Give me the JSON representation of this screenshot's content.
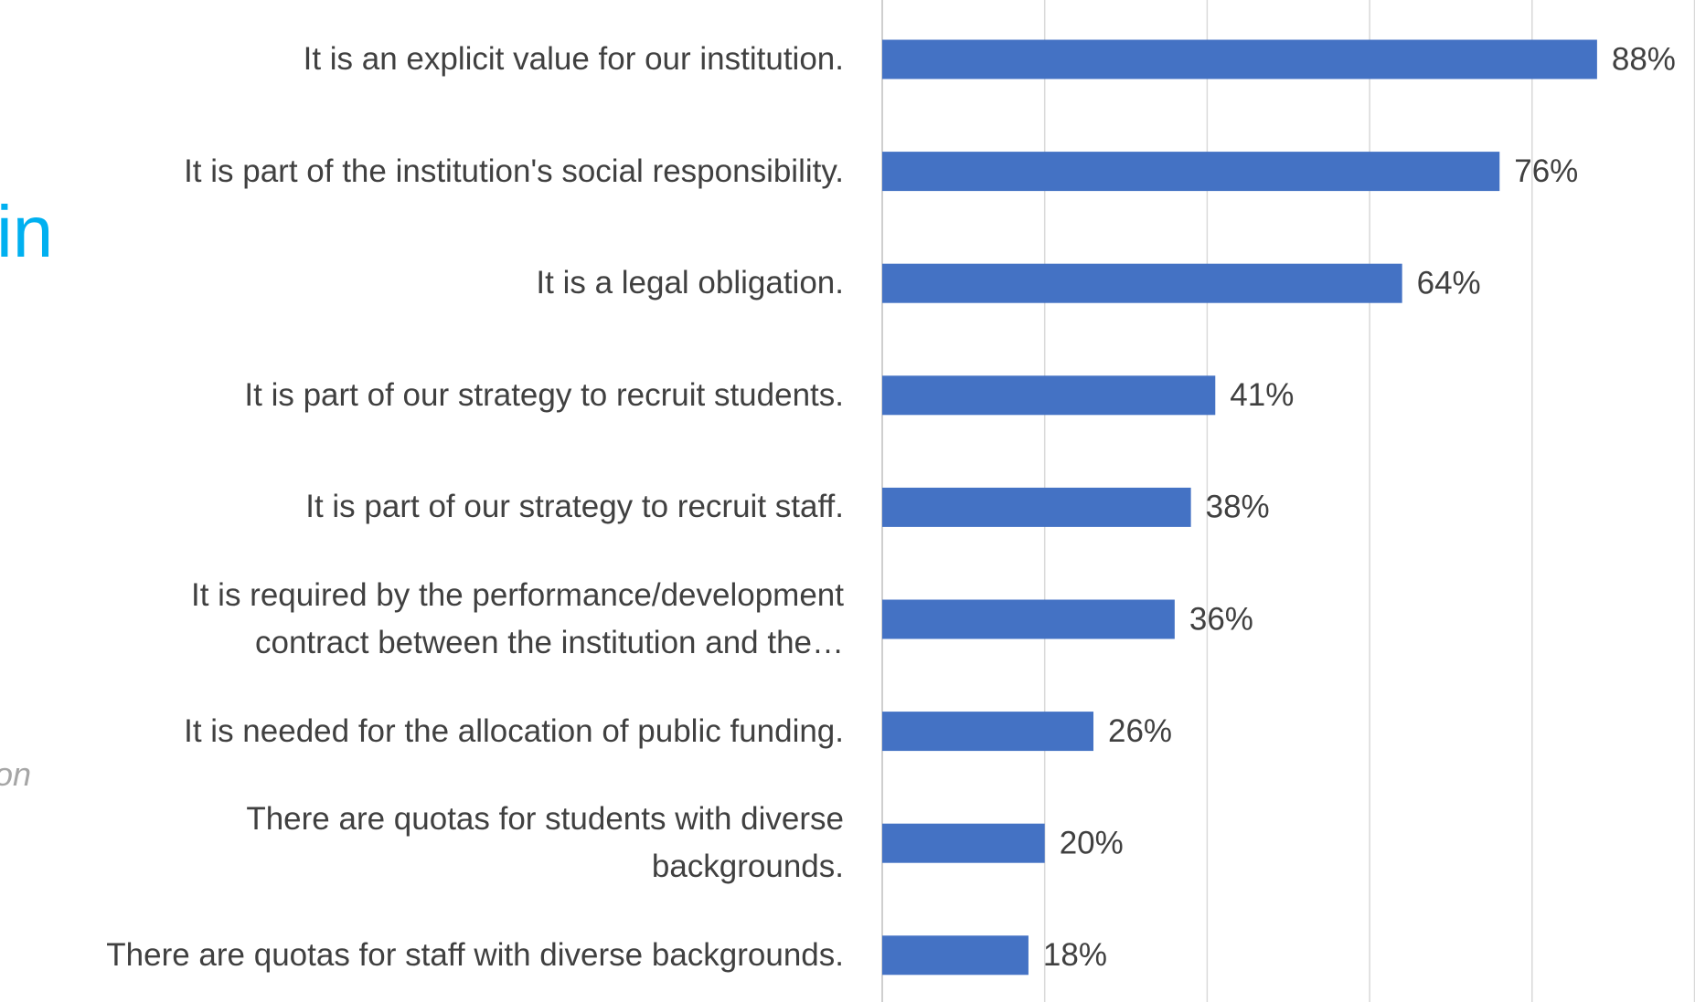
{
  "chart_data": {
    "type": "bar",
    "orientation": "horizontal",
    "categories": [
      "It is an explicit value for our institution.",
      "It is part of the institution's social responsibility.",
      "It is a legal obligation.",
      "It is part of our strategy to recruit students.",
      "It is part of our strategy to recruit staff.",
      "It is required by the performance/development\ncontract between the institution and the…",
      "It is needed for the allocation of public funding.",
      "There are quotas for students with diverse\nbackgrounds.",
      "There are quotas for staff with diverse backgrounds."
    ],
    "values": [
      88,
      76,
      64,
      41,
      38,
      36,
      26,
      20,
      18
    ],
    "value_labels": [
      "88%",
      "76%",
      "64%",
      "41%",
      "38%",
      "36%",
      "26%",
      "20%",
      "18%"
    ],
    "color": "#4472c4",
    "xlim": [
      0,
      100
    ],
    "xticks": [
      0,
      20,
      40,
      60,
      80,
      100
    ],
    "grid": true,
    "annotations": [
      "in",
      "on"
    ]
  }
}
